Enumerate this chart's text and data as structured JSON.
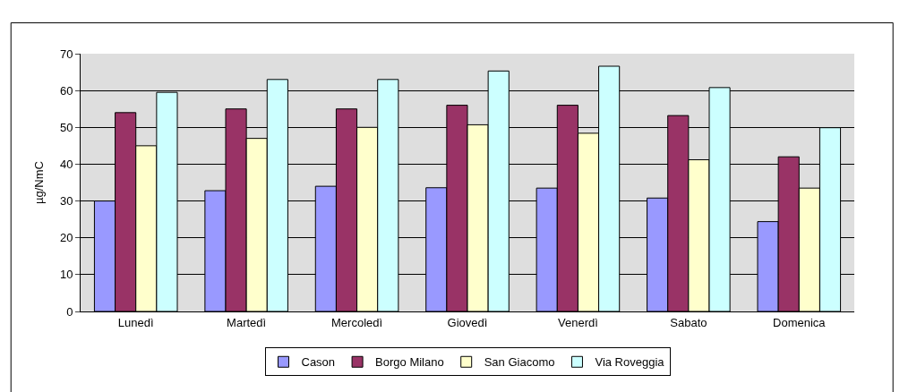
{
  "chart_data": {
    "type": "bar",
    "ylabel": "µg/NmC",
    "categories": [
      "Lunedì",
      "Martedì",
      "Mercoledì",
      "Giovedì",
      "Venerdì",
      "Sabato",
      "Domenica"
    ],
    "series": [
      {
        "name": "Cason",
        "color": "#9999ff",
        "values": [
          30,
          32.8,
          34,
          33.6,
          33.5,
          30.8,
          24.4
        ]
      },
      {
        "name": "Borgo Milano",
        "color": "#993366",
        "values": [
          54,
          55,
          55,
          56,
          56,
          53.2,
          42
        ]
      },
      {
        "name": "San Giacomo",
        "color": "#ffffcc",
        "values": [
          45,
          47,
          50,
          50.7,
          48.4,
          41.2,
          33.5
        ]
      },
      {
        "name": "Via Roveggia",
        "color": "#ccffff",
        "values": [
          59.5,
          63,
          63,
          65.3,
          66.6,
          60.8,
          49.9
        ]
      }
    ],
    "ylim": [
      0,
      70
    ],
    "yticks": [
      0,
      10,
      20,
      30,
      40,
      50,
      60,
      70
    ],
    "grid": "y",
    "legend": "bottom"
  }
}
